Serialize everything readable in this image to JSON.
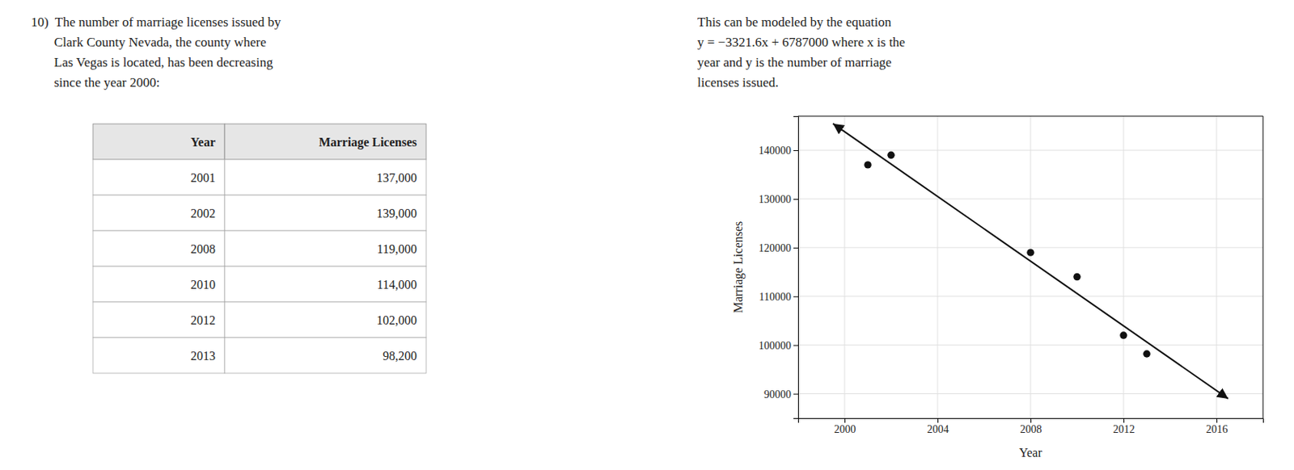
{
  "chart_data": {
    "type": "scatter",
    "xlabel": "Year",
    "ylabel": "Marriage Licenses",
    "xlim": [
      1998,
      2018
    ],
    "ylim": [
      85000,
      147000
    ],
    "xticks": [
      2000,
      2004,
      2008,
      2012,
      2016
    ],
    "yticks": [
      90000,
      100000,
      110000,
      120000,
      130000,
      140000
    ],
    "grid": true,
    "series": [
      {
        "type": "scatter",
        "marker": "circle",
        "color": "#111111",
        "x": [
          2001,
          2002,
          2008,
          2010,
          2012,
          2013
        ],
        "values": [
          137000,
          139000,
          119000,
          114000,
          102000,
          98200
        ]
      },
      {
        "type": "line",
        "marker": "arrow",
        "line_style": "solid",
        "color": "#111111",
        "x": [
          1999.5,
          2016.5
        ],
        "values": [
          145460.8,
          88993.6
        ]
      }
    ],
    "annotations": [
      [
        "10)  The number of marriage licenses issued by",
        "       Clark County Nevada, the county where",
        "       Las Vegas is located, has been decreasing",
        "       since the year 2000:"
      ],
      [
        "This can be modeled by the equation",
        "y = −3321.6x + 6787000 where x is the",
        "year and y is the number of marriage",
        "licenses issued."
      ]
    ],
    "table": {
      "columns": [
        "Year",
        "Marriage Licenses"
      ],
      "rows": [
        [
          2001,
          {
            "value": 137000,
            "label": "137,000"
          }
        ],
        [
          2002,
          {
            "value": 139000,
            "label": "139,000"
          }
        ],
        [
          2008,
          {
            "value": 119000,
            "label": "119,000"
          }
        ],
        [
          2010,
          {
            "value": 114000,
            "label": "114,000"
          }
        ],
        [
          2012,
          {
            "value": 102000,
            "label": "102,000"
          }
        ],
        [
          2013,
          {
            "value": 98200,
            "label": "98,200"
          }
        ]
      ]
    }
  }
}
